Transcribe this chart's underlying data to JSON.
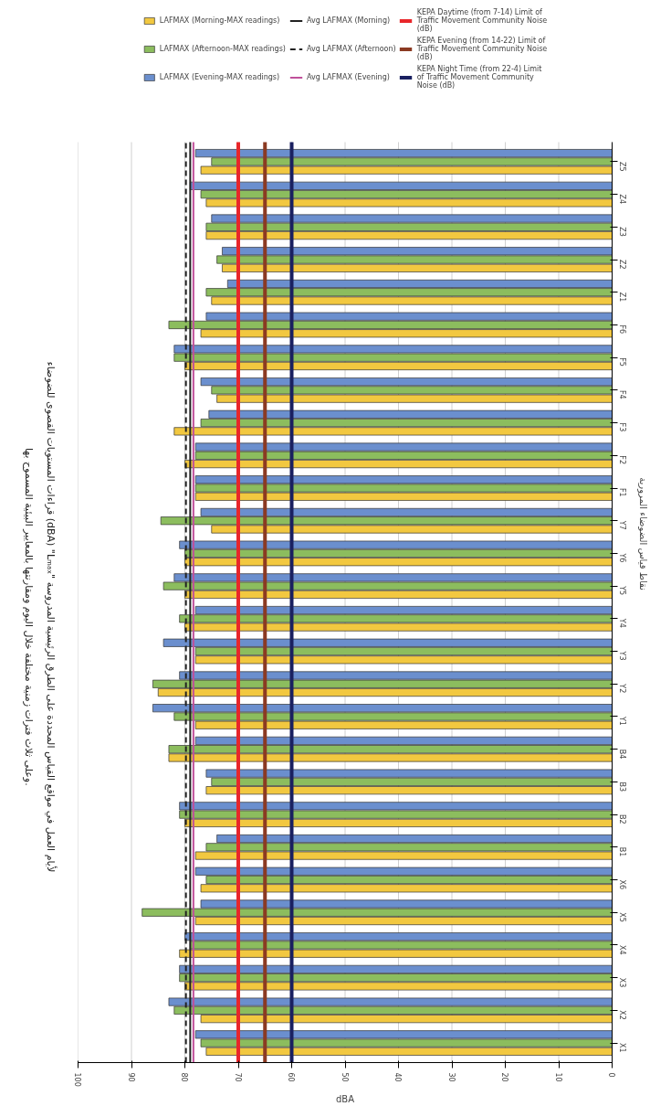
{
  "chart_data": {
    "type": "bar",
    "orientation": "horizontal",
    "title": "قراءات المستويات القصوى للضوضاء (dBA) \"Lₘₐₓ\" لأيام العمل في مواقع القياس المحددة على الطرق الرئيسية المدروسة",
    "subtitle": "وعلى ثلاث فترات زمنية مختلفة خلال اليوم ومقارنتها بالمعايير البيئية المسموح بها.",
    "xlabel": "dBA",
    "ylabel": "نقاط قياس الضوضاء المرورية",
    "categories": [
      "Z5",
      "Z4",
      "Z3",
      "Z2",
      "Z1",
      "F6",
      "F5",
      "F4",
      "F3",
      "F2",
      "F1",
      "Y7",
      "Y6",
      "Y5",
      "Y4",
      "Y3",
      "Y2",
      "Y1",
      "B4",
      "B3",
      "B2",
      "B1",
      "X6",
      "X5",
      "X4",
      "X3",
      "X2",
      "X1"
    ],
    "series": [
      {
        "name": "LAFMAX (Morning-MAX readings)",
        "color": "#f2c840",
        "values": [
          77,
          76,
          76,
          73,
          75,
          77,
          80,
          74,
          82,
          80,
          78,
          75,
          80,
          80,
          80,
          78,
          85,
          78,
          83,
          76,
          80,
          78,
          77,
          78,
          81,
          80,
          77,
          76
        ]
      },
      {
        "name": "LAFMAX (Afternoon-MAX readings)",
        "color": "#8cbd5e",
        "values": [
          75,
          77,
          76,
          74,
          76,
          83,
          82,
          75,
          77,
          78,
          78,
          84.5,
          80,
          84,
          81,
          78,
          86,
          82,
          83,
          75,
          81,
          76,
          76,
          88,
          79,
          81,
          82,
          77
        ]
      },
      {
        "name": "LAFMAX (Evening-MAX readings)",
        "color": "#6b8fce",
        "values": [
          78,
          79,
          75,
          73,
          72,
          76,
          82,
          77,
          75.5,
          78,
          78,
          77,
          81,
          82,
          78,
          84,
          81,
          86,
          78,
          76,
          81,
          74,
          78,
          77,
          80,
          81,
          83,
          78
        ]
      }
    ],
    "xlim": [
      100,
      0
    ],
    "xticks": [
      0,
      10,
      20,
      30,
      40,
      50,
      60,
      70,
      80,
      90,
      100
    ],
    "grid": "x",
    "legend": "top",
    "ref_lines": [
      {
        "axis": "x",
        "value": 79,
        "label": "Avg LAFMAX (Morning)",
        "color": "#222222",
        "line_style": "solid"
      },
      {
        "axis": "x",
        "value": 79.8,
        "label": "Avg LAFMAX (Afternoon)",
        "color": "#222222",
        "line_style": "dashed"
      },
      {
        "axis": "x",
        "value": 78.4,
        "label": "Avg LAFMAX (Evening)",
        "color": "#c0509a",
        "line_style": "solid"
      },
      {
        "axis": "x",
        "value": 70,
        "label": "KEPA Daytime (from 7-14) Limit of Traffic Movement Community Noise (dB)",
        "color": "#e8262a",
        "line_style": "solid"
      },
      {
        "axis": "x",
        "value": 65,
        "label": "KEPA Evening (from 14-22) Limit of Traffic Movement Community Noise (dB)",
        "color": "#8b3a22",
        "line_style": "solid"
      },
      {
        "axis": "x",
        "value": 60,
        "label": "KEPA Night Time (from 22-4) Limit of Traffic Movement Community Noise (dB)",
        "color": "#1a2060",
        "line_style": "solid"
      }
    ]
  }
}
